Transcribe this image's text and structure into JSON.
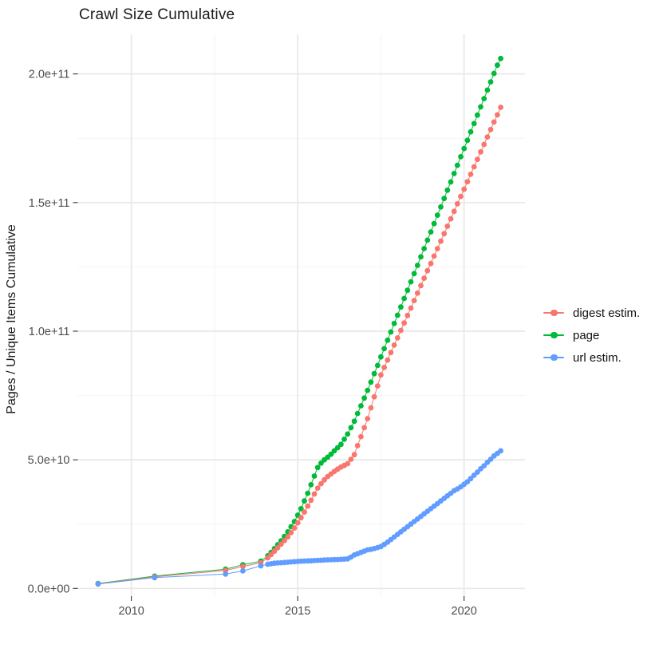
{
  "title": "Crawl Size Cumulative",
  "chart_data": {
    "type": "scatter",
    "title": "Crawl Size Cumulative",
    "xlabel": "",
    "ylabel": "Pages / Unique Items Cumulative",
    "grid": true,
    "legend_position": "right",
    "background": "#ffffff",
    "grid_major_color": "#e8e8e8",
    "grid_minor_color": "#f3f3f3",
    "tick_color": "#333333",
    "tick_label_color": "#4d4d4d",
    "xlim": [
      2008.39,
      2021.83
    ],
    "ylim_billions": [
      -3,
      215.4
    ],
    "x_ticks": {
      "values": [
        2010,
        2015,
        2020
      ],
      "labels": [
        "2010",
        "2015",
        "2020"
      ]
    },
    "x_minor_ticks": [
      2012.5,
      2017.5
    ],
    "y_ticks": {
      "values_billions": [
        0,
        50,
        100,
        150,
        200
      ],
      "labels": [
        "0.0e+00",
        "5.0e+10",
        "1.0e+11",
        "1.5e+11",
        "2.0e+11"
      ]
    },
    "y_minor_ticks_billions": [
      25,
      75,
      125,
      175
    ],
    "y_unit": "billions (1e9) of pages / unique items",
    "draw_order": [
      1,
      0,
      2
    ],
    "x": [
      2009.0,
      2010.7,
      2012.83,
      2013.35,
      2013.89,
      2014.1,
      2014.2,
      2014.3,
      2014.4,
      2014.5,
      2014.6,
      2014.7,
      2014.8,
      2014.9,
      2015.0,
      2015.1,
      2015.2,
      2015.3,
      2015.4,
      2015.5,
      2015.6,
      2015.7,
      2015.8,
      2015.9,
      2016.0,
      2016.1,
      2016.2,
      2016.3,
      2016.4,
      2016.5,
      2016.6,
      2016.7,
      2016.8,
      2016.9,
      2017.0,
      2017.1,
      2017.2,
      2017.3,
      2017.4,
      2017.5,
      2017.6,
      2017.7,
      2017.8,
      2017.9,
      2018.0,
      2018.1,
      2018.2,
      2018.3,
      2018.4,
      2018.5,
      2018.6,
      2018.7,
      2018.8,
      2018.9,
      2019.0,
      2019.1,
      2019.2,
      2019.3,
      2019.4,
      2019.5,
      2019.6,
      2019.7,
      2019.8,
      2019.9,
      2020.0,
      2020.1,
      2020.2,
      2020.3,
      2020.4,
      2020.5,
      2020.6,
      2020.7,
      2020.8,
      2020.9,
      2021.0,
      2021.1
    ],
    "series": [
      {
        "name": "digest estim.",
        "color": "#F8766D",
        "values_billions": [
          1.8,
          4.5,
          7.0,
          8.5,
          10.0,
          11.9,
          13.2,
          14.5,
          15.8,
          17.2,
          18.6,
          20.0,
          21.7,
          23.5,
          25.5,
          27.5,
          29.7,
          32.0,
          34.3,
          36.7,
          39.0,
          40.7,
          42.2,
          43.5,
          44.5,
          45.5,
          46.4,
          47.2,
          47.8,
          48.5,
          50.2,
          52.0,
          55.5,
          59.0,
          62.5,
          66.0,
          70.2,
          74.5,
          78.7,
          83.0,
          85.9,
          88.8,
          91.7,
          94.6,
          97.4,
          100.3,
          103.2,
          106.1,
          109.0,
          111.9,
          114.8,
          117.7,
          120.6,
          123.5,
          126.3,
          129.2,
          132.1,
          135.0,
          137.9,
          140.8,
          143.7,
          146.6,
          149.5,
          152.4,
          155.2,
          158.1,
          161.0,
          163.9,
          166.8,
          169.7,
          172.6,
          175.5,
          178.4,
          181.3,
          184.1,
          187.0
        ]
      },
      {
        "name": "page",
        "color": "#00BA38",
        "values_billions": [
          1.9,
          4.8,
          7.5,
          9.2,
          10.6,
          12.7,
          14.0,
          15.5,
          17.0,
          18.5,
          20.2,
          22.0,
          24.0,
          26.0,
          28.5,
          31.0,
          34.0,
          37.0,
          40.3,
          43.7,
          47.0,
          48.7,
          50.0,
          51.0,
          52.2,
          53.5,
          54.7,
          56.0,
          58.0,
          60.0,
          62.5,
          65.0,
          68.0,
          71.0,
          74.0,
          77.0,
          80.2,
          83.5,
          86.7,
          90.0,
          93.2,
          96.5,
          99.7,
          103.0,
          106.2,
          109.4,
          112.7,
          115.9,
          119.2,
          122.4,
          125.6,
          128.9,
          132.1,
          135.4,
          138.6,
          141.8,
          145.1,
          148.3,
          151.6,
          154.8,
          158.0,
          161.3,
          164.5,
          167.8,
          171.0,
          174.2,
          177.5,
          180.7,
          184.0,
          187.2,
          190.4,
          193.7,
          196.9,
          200.2,
          203.4,
          206.0
        ]
      },
      {
        "name": "url estim.",
        "color": "#619CFF",
        "values_billions": [
          1.7,
          4.2,
          5.6,
          6.8,
          8.8,
          9.4,
          9.6,
          9.8,
          9.9,
          10.0,
          10.1,
          10.2,
          10.3,
          10.4,
          10.5,
          10.6,
          10.65,
          10.7,
          10.75,
          10.85,
          10.9,
          10.95,
          11.05,
          11.1,
          11.15,
          11.2,
          11.25,
          11.3,
          11.4,
          11.5,
          12.2,
          13.0,
          13.5,
          14.0,
          14.5,
          15.0,
          15.2,
          15.5,
          15.9,
          16.3,
          17.1,
          18.0,
          19.0,
          20.0,
          21.0,
          22.0,
          23.0,
          24.0,
          25.0,
          26.0,
          27.0,
          28.0,
          29.0,
          30.0,
          31.0,
          32.0,
          33.0,
          34.0,
          35.0,
          36.0,
          37.0,
          38.0,
          38.7,
          39.5,
          40.5,
          41.5,
          42.7,
          44.0,
          45.2,
          46.5,
          47.7,
          49.0,
          50.2,
          51.5,
          52.5,
          53.5
        ]
      }
    ]
  }
}
